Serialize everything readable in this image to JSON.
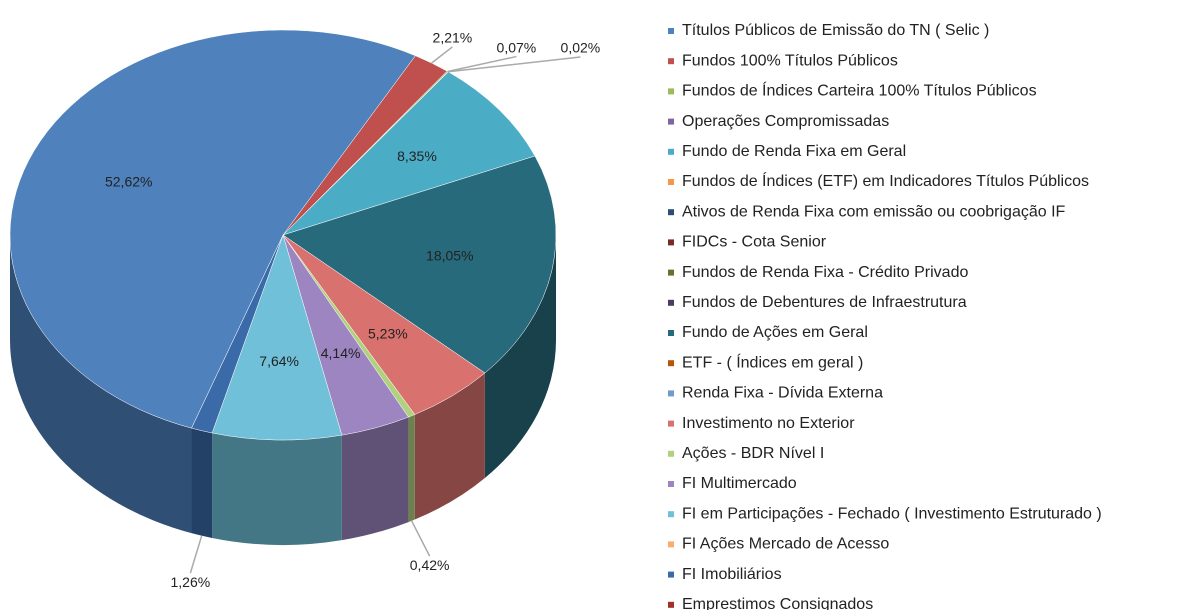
{
  "chart_data": {
    "type": "pie",
    "categories": [
      "Títulos Públicos de Emissão do TN ( Selic )",
      "Fundos  100% Títulos Públicos",
      "Fundos de Índices Carteira 100% Títulos Públicos",
      "Operações Compromissadas",
      "Fundo de Renda Fixa em Geral",
      " Fundos de Índices (ETF) em Indicadores Títulos Públicos",
      "Ativos de Renda Fixa com emissão ou coobrigação IF",
      "FIDCs - Cota Senior",
      "Fundos de Renda Fixa - Crédito Privado",
      "Fundos de Debentures de Infraestrutura",
      "Fundo de Ações em Geral",
      "ETF - ( Índices em geral )",
      "Renda Fixa - Dívida Externa",
      "Investimento no Exterior",
      "Ações - BDR Nível I",
      "FI Multimercado",
      "FI em Participações - Fechado ( Investimento Estruturado )",
      "FI Ações Mercado de Acesso",
      "FI Imobiliários",
      "Emprestimos Consignados"
    ],
    "values": [
      52.62,
      2.21,
      0.07,
      0.02,
      8.35,
      null,
      null,
      null,
      null,
      null,
      18.05,
      null,
      null,
      5.23,
      0.42,
      4.14,
      7.64,
      null,
      1.26,
      null
    ],
    "value_labels": [
      "52,62%",
      "2,21%",
      "0,07%",
      "0,02%",
      "8,35%",
      null,
      null,
      null,
      null,
      null,
      "18,05%",
      null,
      null,
      "5,23%",
      "0,42%",
      "4,14%",
      "7,64%",
      null,
      "1,26%",
      null
    ],
    "colors": [
      "#4f81bd",
      "#c0504d",
      "#9bbb59",
      "#8064a2",
      "#4bacc6",
      "#f79646",
      "#2c4d75",
      "#772c2a",
      "#5f7530",
      "#4d3b62",
      "#276a7c",
      "#b65708",
      "#729aca",
      "#d9726f",
      "#b1d17e",
      "#9c85c0",
      "#6fc0d8",
      "#f9ad6e",
      "#3a6aa7",
      "#a12f2a"
    ]
  }
}
